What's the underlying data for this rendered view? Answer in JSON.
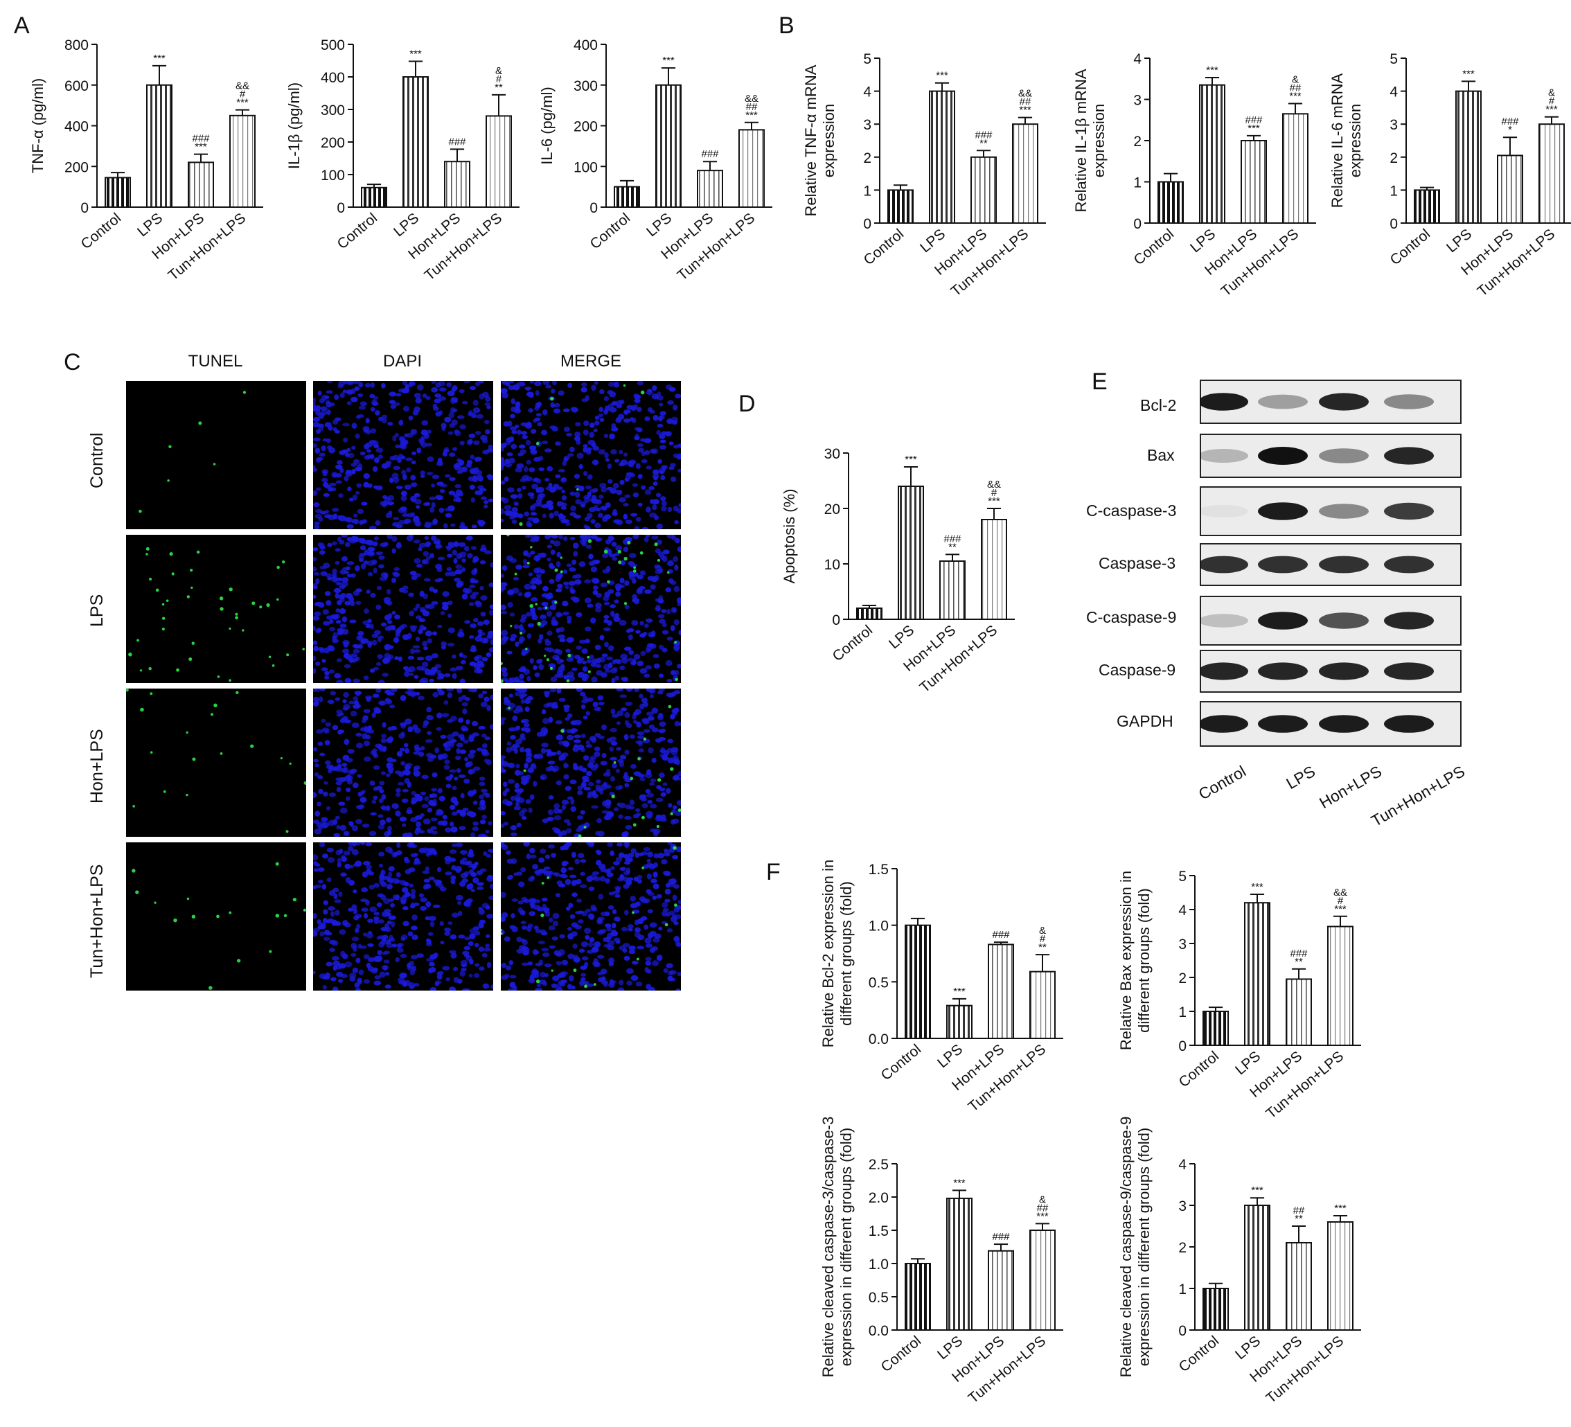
{
  "panels": {
    "A": "A",
    "B": "B",
    "C": "C",
    "D": "D",
    "E": "E",
    "F": "F"
  },
  "groups": [
    "Control",
    "LPS",
    "Hon+LPS",
    "Tun+Hon+LPS"
  ],
  "chart_data": [
    {
      "id": "A1",
      "type": "bar",
      "ylabel": "TNF-α (pg/ml)",
      "categories": [
        "Control",
        "LPS",
        "Hon+LPS",
        "Tun+Hon+LPS"
      ],
      "values": [
        145,
        600,
        220,
        450
      ],
      "errors": [
        25,
        95,
        40,
        28
      ],
      "ylim": [
        0,
        800
      ],
      "yticks": [
        0,
        200,
        400,
        600,
        800
      ],
      "marks": [
        [],
        [
          "***"
        ],
        [
          "###",
          "***"
        ],
        [
          "&&",
          "#",
          "***"
        ]
      ]
    },
    {
      "id": "A2",
      "type": "bar",
      "ylabel": "IL-1β (pg/ml)",
      "categories": [
        "Control",
        "LPS",
        "Hon+LPS",
        "Tun+Hon+LPS"
      ],
      "values": [
        60,
        400,
        140,
        280
      ],
      "errors": [
        10,
        48,
        38,
        65
      ],
      "ylim": [
        0,
        500
      ],
      "yticks": [
        0,
        100,
        200,
        300,
        400,
        500
      ],
      "marks": [
        [],
        [
          "***"
        ],
        [
          "###"
        ],
        [
          "&",
          "#",
          "**"
        ]
      ]
    },
    {
      "id": "A3",
      "type": "bar",
      "ylabel": "IL-6 (pg/ml)",
      "categories": [
        "Control",
        "LPS",
        "Hon+LPS",
        "Tun+Hon+LPS"
      ],
      "values": [
        50,
        300,
        90,
        190
      ],
      "errors": [
        15,
        42,
        22,
        18
      ],
      "ylim": [
        0,
        400
      ],
      "yticks": [
        0,
        100,
        200,
        300,
        400
      ],
      "marks": [
        [],
        [
          "***"
        ],
        [
          "###"
        ],
        [
          "&&",
          "##",
          "***"
        ]
      ]
    },
    {
      "id": "B1",
      "type": "bar",
      "ylabel": [
        "Relative TNF-α mRNA",
        "expression"
      ],
      "categories": [
        "Control",
        "LPS",
        "Hon+LPS",
        "Tun+Hon+LPS"
      ],
      "values": [
        1.0,
        4.0,
        2.0,
        3.0
      ],
      "errors": [
        0.15,
        0.25,
        0.2,
        0.2
      ],
      "ylim": [
        0,
        5
      ],
      "yticks": [
        0,
        1,
        2,
        3,
        4,
        5
      ],
      "marks": [
        [],
        [
          "***"
        ],
        [
          "###",
          "**"
        ],
        [
          "&&",
          "##",
          "***"
        ]
      ]
    },
    {
      "id": "B2",
      "type": "bar",
      "ylabel": [
        "Relative IL-1β mRNA",
        "expression"
      ],
      "categories": [
        "Control",
        "LPS",
        "Hon+LPS",
        "Tun+Hon+LPS"
      ],
      "values": [
        1.0,
        3.35,
        2.0,
        2.65
      ],
      "errors": [
        0.2,
        0.18,
        0.12,
        0.25
      ],
      "ylim": [
        0,
        4
      ],
      "yticks": [
        0,
        1,
        2,
        3,
        4
      ],
      "marks": [
        [],
        [
          "***"
        ],
        [
          "###",
          "***"
        ],
        [
          "&",
          "##",
          "***"
        ]
      ]
    },
    {
      "id": "B3",
      "type": "bar",
      "ylabel": [
        "Relative IL-6 mRNA",
        "expression"
      ],
      "categories": [
        "Control",
        "LPS",
        "Hon+LPS",
        "Tun+Hon+LPS"
      ],
      "values": [
        1.0,
        4.0,
        2.05,
        3.0
      ],
      "errors": [
        0.08,
        0.3,
        0.55,
        0.22
      ],
      "ylim": [
        0,
        5
      ],
      "yticks": [
        0,
        1,
        2,
        3,
        4,
        5
      ],
      "marks": [
        [],
        [
          "***"
        ],
        [
          "###",
          "*"
        ],
        [
          "&",
          "#",
          "***"
        ]
      ]
    },
    {
      "id": "D",
      "type": "bar",
      "ylabel": "Apoptosis (%)",
      "categories": [
        "Control",
        "LPS",
        "Hon+LPS",
        "Tun+Hon+LPS"
      ],
      "values": [
        2,
        24,
        10.5,
        18
      ],
      "errors": [
        0.5,
        3.5,
        1.2,
        2
      ],
      "ylim": [
        0,
        30
      ],
      "yticks": [
        0,
        10,
        20,
        30
      ],
      "marks": [
        [],
        [
          "***"
        ],
        [
          "###",
          "**"
        ],
        [
          "&&",
          "#",
          "***"
        ]
      ]
    },
    {
      "id": "F1",
      "type": "bar",
      "ylabel": [
        "Relative Bcl-2 expression in",
        "different groups (fold)"
      ],
      "categories": [
        "Control",
        "LPS",
        "Hon+LPS",
        "Tun+Hon+LPS"
      ],
      "values": [
        1.0,
        0.29,
        0.83,
        0.59
      ],
      "errors": [
        0.06,
        0.06,
        0.02,
        0.15
      ],
      "ylim": [
        0,
        1.5
      ],
      "yticks": [
        "0.0",
        "0.5",
        "1.0",
        "1.5"
      ],
      "marks": [
        [],
        [
          "***"
        ],
        [
          "###"
        ],
        [
          "&",
          "#",
          "**"
        ]
      ]
    },
    {
      "id": "F2",
      "type": "bar",
      "ylabel": [
        "Relative Bax expression in",
        "different groups (fold)"
      ],
      "categories": [
        "Control",
        "LPS",
        "Hon+LPS",
        "Tun+Hon+LPS"
      ],
      "values": [
        1.0,
        4.2,
        1.95,
        3.5
      ],
      "errors": [
        0.12,
        0.25,
        0.3,
        0.3
      ],
      "ylim": [
        0,
        5
      ],
      "yticks": [
        0,
        1,
        2,
        3,
        4,
        5
      ],
      "marks": [
        [],
        [
          "***"
        ],
        [
          "###",
          "**"
        ],
        [
          "&&",
          "#",
          "***"
        ]
      ]
    },
    {
      "id": "F3",
      "type": "bar",
      "ylabel": [
        "Relative cleaved caspase-3/caspase-3",
        "expression in different groups (fold)"
      ],
      "categories": [
        "Control",
        "LPS",
        "Hon+LPS",
        "Tun+Hon+LPS"
      ],
      "values": [
        1.0,
        1.98,
        1.19,
        1.5
      ],
      "errors": [
        0.07,
        0.12,
        0.1,
        0.1
      ],
      "ylim": [
        0,
        2.5
      ],
      "yticks": [
        "0.0",
        "0.5",
        "1.0",
        "1.5",
        "2.0",
        "2.5"
      ],
      "marks": [
        [],
        [
          "***"
        ],
        [
          "###"
        ],
        [
          "&",
          "##",
          "***"
        ]
      ]
    },
    {
      "id": "F4",
      "type": "bar",
      "ylabel": [
        "Relative cleaved caspase-9/caspase-9",
        "expression in different groups (fold)"
      ],
      "categories": [
        "Control",
        "LPS",
        "Hon+LPS",
        "Tun+Hon+LPS"
      ],
      "values": [
        1.0,
        3.0,
        2.1,
        2.6
      ],
      "errors": [
        0.12,
        0.18,
        0.4,
        0.15
      ],
      "ylim": [
        0,
        4
      ],
      "yticks": [
        0,
        1,
        2,
        3,
        4
      ],
      "marks": [
        [],
        [
          "***"
        ],
        [
          "##",
          "**"
        ],
        [
          "***"
        ]
      ]
    }
  ],
  "microscopy": {
    "columns": [
      "TUNEL",
      "DAPI",
      "MERGE"
    ],
    "rows": [
      "Control",
      "LPS",
      "Hon+LPS",
      "Tun+Hon+LPS"
    ]
  },
  "western_blot": {
    "proteins": [
      "Bcl-2",
      "Bax",
      "C-caspase-3",
      "Caspase-3",
      "C-caspase-9",
      "Caspase-9",
      "GAPDH"
    ],
    "groups": [
      "Control",
      "LPS",
      "Hon+LPS",
      "Tun+Hon+LPS"
    ]
  },
  "colors": {
    "bar_fill": "#ffffff",
    "bar_stroke": "#111111",
    "dapi_blue": "#1a1ad8",
    "tunel_green": "#2ee84a",
    "panel_bg": "#000000"
  }
}
